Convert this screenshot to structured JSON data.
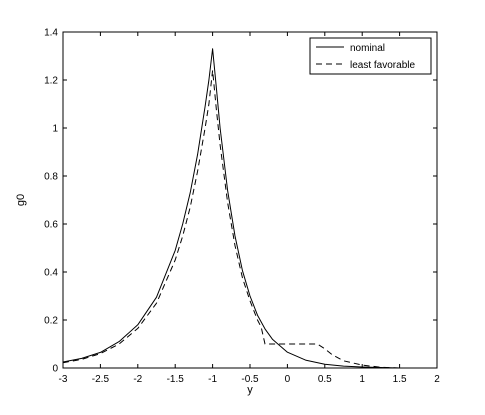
{
  "chart_data": {
    "type": "line",
    "title": "",
    "xlabel": "y",
    "ylabel": "g0",
    "xlim": [
      -3,
      2
    ],
    "ylim": [
      0,
      1.4
    ],
    "xticks": [
      -3,
      -2.5,
      -2,
      -1.5,
      -1,
      -0.5,
      0,
      0.5,
      1,
      1.5,
      2
    ],
    "yticks": [
      0,
      0.2,
      0.4,
      0.6,
      0.8,
      1,
      1.2,
      1.4
    ],
    "xtick_labels": [
      "-3",
      "-2.5",
      "-2",
      "-1.5",
      "-1",
      "-0.5",
      "0",
      "0.5",
      "1",
      "1.5",
      "2"
    ],
    "ytick_labels": [
      "0",
      "0.2",
      "0.4",
      "0.6",
      "0.8",
      "1",
      "1.2",
      "1.4"
    ],
    "grid": false,
    "legend_position": "top-right",
    "series": [
      {
        "name": "nominal",
        "style": "solid",
        "color": "#000000",
        "x": [
          -3,
          -2.75,
          -2.5,
          -2.25,
          -2,
          -1.75,
          -1.5,
          -1.4,
          -1.3,
          -1.2,
          -1.1,
          -1.05,
          -1,
          -0.95,
          -0.9,
          -0.8,
          -0.7,
          -0.6,
          -0.5,
          -0.4,
          -0.3,
          -0.2,
          0,
          0.25,
          0.5,
          0.75,
          1,
          1.25,
          1.5
        ],
        "y": [
          0.025,
          0.04,
          0.065,
          0.11,
          0.18,
          0.295,
          0.49,
          0.6,
          0.73,
          0.89,
          1.09,
          1.2,
          1.33,
          1.17,
          1.0,
          0.74,
          0.55,
          0.405,
          0.3,
          0.22,
          0.163,
          0.12,
          0.066,
          0.032,
          0.016,
          0.008,
          0.004,
          0.002,
          0.0
        ]
      },
      {
        "name": "least favorable",
        "style": "dashed",
        "color": "#000000",
        "x": [
          -3,
          -2.75,
          -2.5,
          -2.25,
          -2,
          -1.75,
          -1.5,
          -1.4,
          -1.3,
          -1.2,
          -1.1,
          -1.05,
          -1,
          -0.95,
          -0.9,
          -0.8,
          -0.7,
          -0.6,
          -0.5,
          -0.4,
          -0.35,
          -0.3,
          0,
          0.25,
          0.4,
          0.5,
          0.6,
          0.75,
          1,
          1.25,
          1.5
        ],
        "y": [
          0.022,
          0.036,
          0.06,
          0.1,
          0.165,
          0.27,
          0.45,
          0.55,
          0.67,
          0.82,
          1.0,
          1.1,
          1.24,
          1.08,
          0.93,
          0.69,
          0.51,
          0.375,
          0.28,
          0.2,
          0.17,
          0.1,
          0.1,
          0.1,
          0.1,
          0.08,
          0.055,
          0.03,
          0.012,
          0.003,
          0.0
        ]
      }
    ]
  }
}
